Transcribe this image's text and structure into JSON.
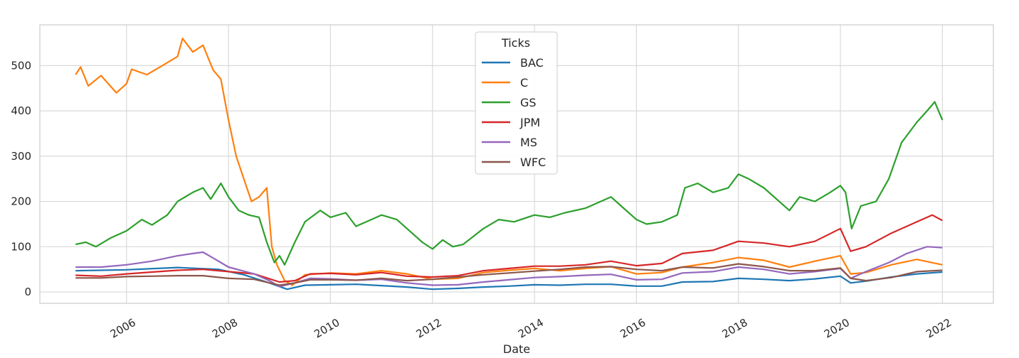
{
  "chart_data": {
    "type": "line",
    "xlabel": "Date",
    "ylabel": "",
    "xlim": [
      2004.3,
      2023.0
    ],
    "ylim": [
      -25,
      590
    ],
    "x_ticks": [
      "2006",
      "2008",
      "2010",
      "2012",
      "2014",
      "2016",
      "2018",
      "2020",
      "2022"
    ],
    "y_ticks": [
      "0",
      "100",
      "200",
      "300",
      "400",
      "500"
    ],
    "grid": true,
    "legend": {
      "title": "Ticks",
      "placement": "top-center"
    },
    "series": [
      {
        "name": "BAC",
        "color": "#1f77b4",
        "points": [
          [
            2005.0,
            47
          ],
          [
            2006.0,
            49
          ],
          [
            2007.0,
            54
          ],
          [
            2007.8,
            50
          ],
          [
            2008.3,
            38
          ],
          [
            2008.8,
            20
          ],
          [
            2009.15,
            6
          ],
          [
            2009.5,
            15
          ],
          [
            2010.0,
            16
          ],
          [
            2010.5,
            17
          ],
          [
            2011.0,
            14
          ],
          [
            2011.5,
            11
          ],
          [
            2012.0,
            6
          ],
          [
            2012.5,
            8
          ],
          [
            2013.0,
            11
          ],
          [
            2013.5,
            13
          ],
          [
            2014.0,
            16
          ],
          [
            2014.5,
            15
          ],
          [
            2015.0,
            17
          ],
          [
            2015.5,
            17
          ],
          [
            2016.0,
            13
          ],
          [
            2016.5,
            13
          ],
          [
            2016.9,
            22
          ],
          [
            2017.5,
            23
          ],
          [
            2018.0,
            30
          ],
          [
            2018.5,
            28
          ],
          [
            2019.0,
            25
          ],
          [
            2019.5,
            29
          ],
          [
            2020.0,
            35
          ],
          [
            2020.2,
            20
          ],
          [
            2020.5,
            24
          ],
          [
            2021.0,
            33
          ],
          [
            2021.5,
            40
          ],
          [
            2022.0,
            44
          ]
        ]
      },
      {
        "name": "C",
        "color": "#ff7f0e",
        "points": [
          [
            2005.0,
            480
          ],
          [
            2005.1,
            497
          ],
          [
            2005.25,
            455
          ],
          [
            2005.5,
            478
          ],
          [
            2005.8,
            440
          ],
          [
            2006.0,
            460
          ],
          [
            2006.1,
            492
          ],
          [
            2006.4,
            480
          ],
          [
            2006.7,
            500
          ],
          [
            2007.0,
            520
          ],
          [
            2007.1,
            560
          ],
          [
            2007.3,
            530
          ],
          [
            2007.5,
            545
          ],
          [
            2007.7,
            490
          ],
          [
            2007.85,
            470
          ],
          [
            2008.0,
            380
          ],
          [
            2008.15,
            300
          ],
          [
            2008.3,
            250
          ],
          [
            2008.45,
            200
          ],
          [
            2008.6,
            210
          ],
          [
            2008.75,
            230
          ],
          [
            2008.85,
            100
          ],
          [
            2008.95,
            60
          ],
          [
            2009.1,
            25
          ],
          [
            2009.25,
            15
          ],
          [
            2009.5,
            38
          ],
          [
            2010.0,
            42
          ],
          [
            2010.5,
            40
          ],
          [
            2011.0,
            47
          ],
          [
            2011.5,
            40
          ],
          [
            2012.0,
            28
          ],
          [
            2012.5,
            30
          ],
          [
            2013.0,
            43
          ],
          [
            2013.5,
            48
          ],
          [
            2014.0,
            52
          ],
          [
            2014.5,
            47
          ],
          [
            2015.0,
            52
          ],
          [
            2015.5,
            56
          ],
          [
            2016.0,
            40
          ],
          [
            2016.5,
            43
          ],
          [
            2016.9,
            55
          ],
          [
            2017.5,
            65
          ],
          [
            2018.0,
            76
          ],
          [
            2018.5,
            70
          ],
          [
            2019.0,
            55
          ],
          [
            2019.5,
            68
          ],
          [
            2020.0,
            80
          ],
          [
            2020.2,
            40
          ],
          [
            2020.5,
            43
          ],
          [
            2021.0,
            60
          ],
          [
            2021.5,
            72
          ],
          [
            2022.0,
            60
          ]
        ]
      },
      {
        "name": "GS",
        "color": "#2ca02c",
        "points": [
          [
            2005.0,
            105
          ],
          [
            2005.2,
            110
          ],
          [
            2005.4,
            100
          ],
          [
            2005.7,
            120
          ],
          [
            2006.0,
            135
          ],
          [
            2006.3,
            160
          ],
          [
            2006.5,
            148
          ],
          [
            2006.8,
            170
          ],
          [
            2007.0,
            200
          ],
          [
            2007.3,
            220
          ],
          [
            2007.5,
            230
          ],
          [
            2007.65,
            205
          ],
          [
            2007.85,
            240
          ],
          [
            2008.0,
            210
          ],
          [
            2008.2,
            180
          ],
          [
            2008.4,
            170
          ],
          [
            2008.6,
            165
          ],
          [
            2008.75,
            110
          ],
          [
            2008.9,
            65
          ],
          [
            2009.0,
            80
          ],
          [
            2009.1,
            60
          ],
          [
            2009.3,
            110
          ],
          [
            2009.5,
            155
          ],
          [
            2009.8,
            180
          ],
          [
            2010.0,
            165
          ],
          [
            2010.3,
            175
          ],
          [
            2010.5,
            145
          ],
          [
            2010.8,
            160
          ],
          [
            2011.0,
            170
          ],
          [
            2011.3,
            160
          ],
          [
            2011.6,
            130
          ],
          [
            2011.8,
            110
          ],
          [
            2012.0,
            95
          ],
          [
            2012.2,
            115
          ],
          [
            2012.4,
            100
          ],
          [
            2012.6,
            105
          ],
          [
            2013.0,
            140
          ],
          [
            2013.3,
            160
          ],
          [
            2013.6,
            155
          ],
          [
            2014.0,
            170
          ],
          [
            2014.3,
            165
          ],
          [
            2014.6,
            175
          ],
          [
            2015.0,
            185
          ],
          [
            2015.3,
            200
          ],
          [
            2015.5,
            210
          ],
          [
            2015.7,
            190
          ],
          [
            2016.0,
            160
          ],
          [
            2016.2,
            150
          ],
          [
            2016.5,
            155
          ],
          [
            2016.8,
            170
          ],
          [
            2016.95,
            230
          ],
          [
            2017.2,
            240
          ],
          [
            2017.5,
            220
          ],
          [
            2017.8,
            230
          ],
          [
            2018.0,
            260
          ],
          [
            2018.2,
            250
          ],
          [
            2018.5,
            230
          ],
          [
            2018.8,
            200
          ],
          [
            2019.0,
            180
          ],
          [
            2019.2,
            210
          ],
          [
            2019.5,
            200
          ],
          [
            2019.8,
            220
          ],
          [
            2020.0,
            235
          ],
          [
            2020.1,
            220
          ],
          [
            2020.22,
            140
          ],
          [
            2020.4,
            190
          ],
          [
            2020.7,
            200
          ],
          [
            2020.95,
            250
          ],
          [
            2021.2,
            330
          ],
          [
            2021.5,
            375
          ],
          [
            2021.7,
            400
          ],
          [
            2021.85,
            420
          ],
          [
            2022.0,
            380
          ]
        ]
      },
      {
        "name": "JPM",
        "color": "#d62728",
        "points": [
          [
            2005.0,
            37
          ],
          [
            2005.5,
            35
          ],
          [
            2006.0,
            40
          ],
          [
            2006.5,
            44
          ],
          [
            2007.0,
            48
          ],
          [
            2007.5,
            50
          ],
          [
            2008.0,
            45
          ],
          [
            2008.5,
            40
          ],
          [
            2009.0,
            22
          ],
          [
            2009.3,
            25
          ],
          [
            2009.6,
            40
          ],
          [
            2010.0,
            41
          ],
          [
            2010.5,
            38
          ],
          [
            2011.0,
            43
          ],
          [
            2011.5,
            35
          ],
          [
            2012.0,
            33
          ],
          [
            2012.5,
            36
          ],
          [
            2013.0,
            47
          ],
          [
            2013.5,
            52
          ],
          [
            2014.0,
            57
          ],
          [
            2014.5,
            57
          ],
          [
            2015.0,
            60
          ],
          [
            2015.5,
            68
          ],
          [
            2016.0,
            58
          ],
          [
            2016.5,
            63
          ],
          [
            2016.9,
            85
          ],
          [
            2017.5,
            92
          ],
          [
            2018.0,
            112
          ],
          [
            2018.5,
            108
          ],
          [
            2019.0,
            100
          ],
          [
            2019.5,
            112
          ],
          [
            2020.0,
            140
          ],
          [
            2020.2,
            90
          ],
          [
            2020.5,
            100
          ],
          [
            2021.0,
            130
          ],
          [
            2021.5,
            155
          ],
          [
            2021.8,
            170
          ],
          [
            2022.0,
            158
          ]
        ]
      },
      {
        "name": "MS",
        "color": "#9467bd",
        "points": [
          [
            2005.0,
            55
          ],
          [
            2005.5,
            55
          ],
          [
            2006.0,
            60
          ],
          [
            2006.5,
            68
          ],
          [
            2007.0,
            80
          ],
          [
            2007.3,
            85
          ],
          [
            2007.5,
            88
          ],
          [
            2007.7,
            75
          ],
          [
            2008.0,
            55
          ],
          [
            2008.5,
            40
          ],
          [
            2008.8,
            25
          ],
          [
            2009.0,
            12
          ],
          [
            2009.3,
            20
          ],
          [
            2009.6,
            30
          ],
          [
            2010.0,
            29
          ],
          [
            2010.5,
            26
          ],
          [
            2011.0,
            28
          ],
          [
            2011.5,
            20
          ],
          [
            2012.0,
            15
          ],
          [
            2012.5,
            16
          ],
          [
            2013.0,
            22
          ],
          [
            2013.5,
            27
          ],
          [
            2014.0,
            32
          ],
          [
            2014.5,
            34
          ],
          [
            2015.0,
            37
          ],
          [
            2015.5,
            39
          ],
          [
            2016.0,
            27
          ],
          [
            2016.5,
            28
          ],
          [
            2016.9,
            42
          ],
          [
            2017.5,
            45
          ],
          [
            2018.0,
            55
          ],
          [
            2018.5,
            50
          ],
          [
            2019.0,
            40
          ],
          [
            2019.5,
            45
          ],
          [
            2020.0,
            52
          ],
          [
            2020.2,
            30
          ],
          [
            2020.5,
            45
          ],
          [
            2020.95,
            65
          ],
          [
            2021.3,
            85
          ],
          [
            2021.7,
            100
          ],
          [
            2022.0,
            98
          ]
        ]
      },
      {
        "name": "WFC",
        "color": "#8c564b",
        "points": [
          [
            2005.0,
            31
          ],
          [
            2005.5,
            31
          ],
          [
            2006.0,
            34
          ],
          [
            2006.5,
            35
          ],
          [
            2007.0,
            36
          ],
          [
            2007.5,
            36
          ],
          [
            2008.0,
            30
          ],
          [
            2008.5,
            28
          ],
          [
            2009.0,
            15
          ],
          [
            2009.3,
            20
          ],
          [
            2009.6,
            27
          ],
          [
            2010.0,
            27
          ],
          [
            2010.5,
            26
          ],
          [
            2011.0,
            30
          ],
          [
            2011.5,
            25
          ],
          [
            2012.0,
            28
          ],
          [
            2012.5,
            33
          ],
          [
            2013.0,
            38
          ],
          [
            2013.5,
            42
          ],
          [
            2014.0,
            46
          ],
          [
            2014.5,
            50
          ],
          [
            2015.0,
            55
          ],
          [
            2015.5,
            56
          ],
          [
            2016.0,
            50
          ],
          [
            2016.5,
            47
          ],
          [
            2016.9,
            55
          ],
          [
            2017.5,
            53
          ],
          [
            2018.0,
            62
          ],
          [
            2018.5,
            56
          ],
          [
            2019.0,
            47
          ],
          [
            2019.5,
            47
          ],
          [
            2020.0,
            53
          ],
          [
            2020.2,
            30
          ],
          [
            2020.5,
            25
          ],
          [
            2021.0,
            32
          ],
          [
            2021.5,
            45
          ],
          [
            2022.0,
            48
          ]
        ]
      }
    ]
  }
}
